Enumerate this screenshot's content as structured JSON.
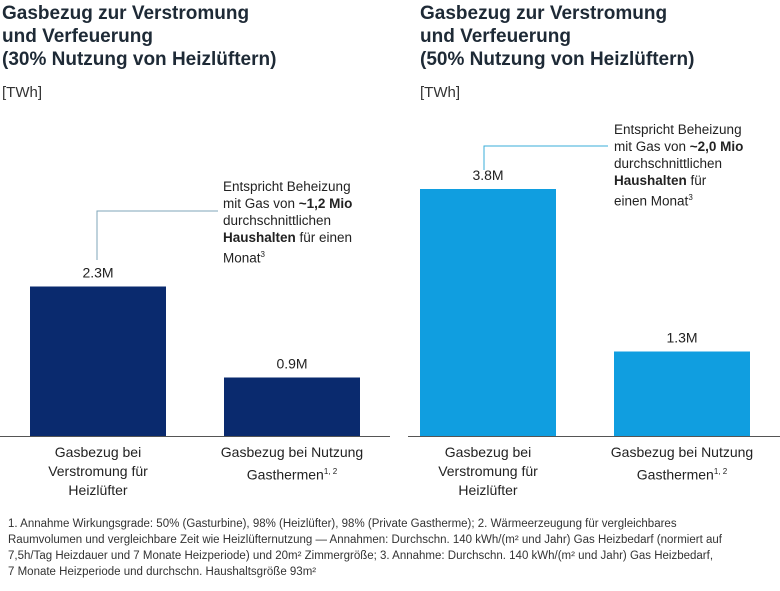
{
  "chart_data": [
    {
      "type": "bar",
      "title": [
        "Gasbezug zur Verstromung",
        "und Verfeuerung",
        "(30% Nutzung von Heizlüftern)"
      ],
      "unit_label": "[TWh]",
      "categories": [
        {
          "lines": [
            "Gasbezug bei",
            "Verstromung für",
            "Heizlüfter"
          ],
          "sup": ""
        },
        {
          "lines": [
            "Gasbezug bei Nutzung",
            "Gasthermen"
          ],
          "sup": "1, 2"
        }
      ],
      "values": [
        2.3,
        0.9
      ],
      "data_labels": [
        "2.3M",
        "0.9M"
      ],
      "colors": [
        "#0a2a6e",
        "#0a2a6e"
      ],
      "ylim": [
        0,
        4.0
      ],
      "annotation": {
        "lines": [
          [
            {
              "t": "Entspricht Beheizung"
            }
          ],
          [
            {
              "t": "mit Gas von "
            },
            {
              "t": "~1,2 Mio",
              "b": true
            }
          ],
          [
            {
              "t": "durchschnittlichen"
            }
          ],
          [
            {
              "t": "Haushalten",
              "b": true
            },
            {
              "t": " für einen"
            }
          ],
          [
            {
              "t": "Monat"
            },
            {
              "t": "3",
              "sup": true
            }
          ]
        ],
        "line_color": "#7fa6b8"
      }
    },
    {
      "type": "bar",
      "title": [
        "Gasbezug zur Verstromung",
        "und Verfeuerung",
        "(50% Nutzung von Heizlüftern)"
      ],
      "unit_label": "[TWh]",
      "categories": [
        {
          "lines": [
            "Gasbezug bei",
            "Verstromung für",
            "Heizlüfter"
          ],
          "sup": ""
        },
        {
          "lines": [
            "Gasbezug bei Nutzung",
            "Gasthermen"
          ],
          "sup": "1, 2"
        }
      ],
      "values": [
        3.8,
        1.3
      ],
      "data_labels": [
        "3.8M",
        "1.3M"
      ],
      "colors": [
        "#109ee0",
        "#109ee0"
      ],
      "ylim": [
        0,
        4.0
      ],
      "annotation": {
        "lines": [
          [
            {
              "t": "Entspricht Beheizung"
            }
          ],
          [
            {
              "t": "mit Gas von "
            },
            {
              "t": "~2,0 Mio",
              "b": true
            }
          ],
          [
            {
              "t": "durchschnittlichen"
            }
          ],
          [
            {
              "t": "Haushalten",
              "b": true
            },
            {
              "t": " für"
            }
          ],
          [
            {
              "t": "einen Monat"
            },
            {
              "t": "3",
              "sup": true
            }
          ]
        ],
        "line_color": "#3aaed8"
      }
    }
  ],
  "footnote": [
    "1. Annahme Wirkungsgrade: 50% (Gasturbine), 98% (Heizlüfter), 98% (Private Gastherme); 2. Wärmeerzeugung für vergleichbares",
    "Raumvolumen und vergleichbare Zeit wie Heizlüfternutzung — Annahmen: Durchschn. 140 kWh/(m² und Jahr) Gas Heizbedarf (normiert auf",
    "7,5h/Tag Heizdauer und 7 Monate Heizperiode) und 20m² Zimmergröße; 3. Annahme: Durchschn. 140 kWh/(m² und Jahr) Gas Heizbedarf,",
    "7 Monate Heizperiode und durchschn. Haushaltsgröße 93m²"
  ]
}
